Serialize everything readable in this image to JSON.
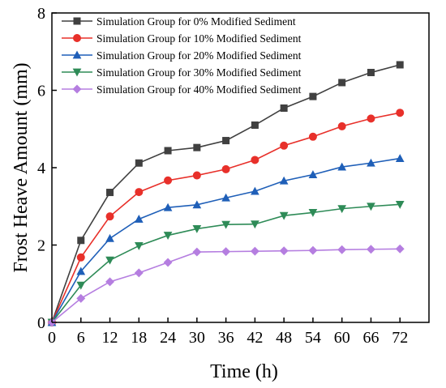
{
  "chart_data": {
    "type": "line",
    "xlabel": "Time (h)",
    "ylabel": "Frost Heave Amount (mm)",
    "xlim": [
      0,
      78
    ],
    "ylim": [
      0,
      8
    ],
    "xticks": [
      0,
      6,
      12,
      18,
      24,
      30,
      36,
      42,
      48,
      54,
      60,
      66,
      72
    ],
    "yticks": [
      0,
      2,
      4,
      6,
      8
    ],
    "grid": false,
    "legend_position": "top-left",
    "x": [
      0,
      6,
      12,
      18,
      24,
      30,
      36,
      42,
      48,
      54,
      60,
      66,
      72
    ],
    "series": [
      {
        "name": "Simulation Group for 0% Modified Sediment",
        "color": "#404040",
        "marker": "square",
        "values": [
          0,
          2.12,
          3.36,
          4.12,
          4.44,
          4.52,
          4.7,
          5.1,
          5.54,
          5.84,
          6.2,
          6.46,
          6.66
        ]
      },
      {
        "name": "Simulation Group for 10% Modified Sediment",
        "color": "#e8302a",
        "marker": "circle",
        "values": [
          0,
          1.68,
          2.74,
          3.37,
          3.67,
          3.8,
          3.96,
          4.2,
          4.57,
          4.8,
          5.07,
          5.27,
          5.42
        ]
      },
      {
        "name": "Simulation Group for 20% Modified Sediment",
        "color": "#1f5fb8",
        "marker": "triangle-up",
        "values": [
          0,
          1.32,
          2.17,
          2.67,
          2.97,
          3.04,
          3.22,
          3.39,
          3.66,
          3.82,
          4.02,
          4.12,
          4.24
        ]
      },
      {
        "name": "Simulation Group for 30% Modified Sediment",
        "color": "#2e8b57",
        "marker": "triangle-down",
        "values": [
          0,
          0.96,
          1.61,
          1.98,
          2.25,
          2.42,
          2.53,
          2.54,
          2.76,
          2.84,
          2.94,
          3.0,
          3.05
        ]
      },
      {
        "name": "Simulation Group for 40% Modified Sediment",
        "color": "#b57ee0",
        "marker": "diamond",
        "values": [
          0,
          0.62,
          1.05,
          1.28,
          1.55,
          1.82,
          1.83,
          1.84,
          1.85,
          1.86,
          1.88,
          1.89,
          1.9
        ]
      }
    ]
  }
}
